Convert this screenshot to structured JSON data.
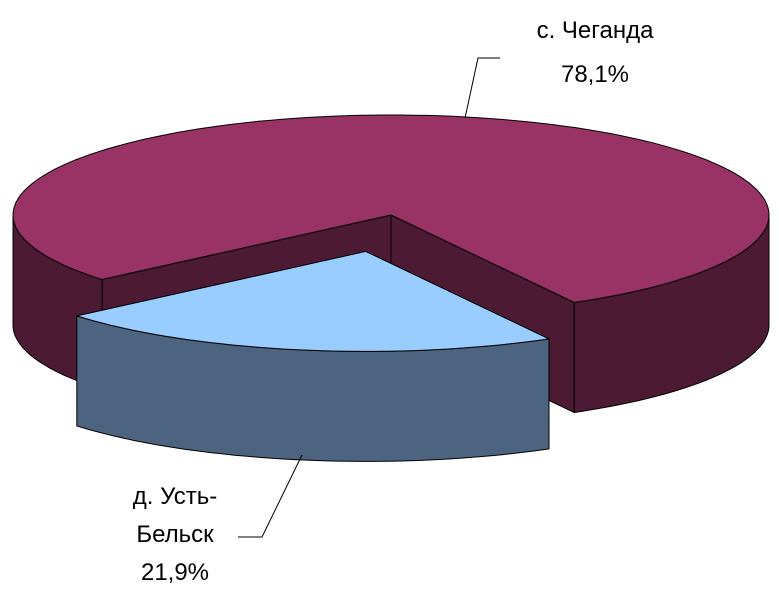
{
  "chart_data": {
    "type": "pie3d",
    "categories": [
      "с. Чеганда",
      "д. Усть-Бельск"
    ],
    "values": [
      78.1,
      21.9
    ],
    "value_labels": [
      "78,1%",
      "21,9%"
    ],
    "colors": [
      "#993366",
      "#99ccff"
    ],
    "side_colors": [
      "#4d1a33",
      "#4d6480"
    ]
  }
}
